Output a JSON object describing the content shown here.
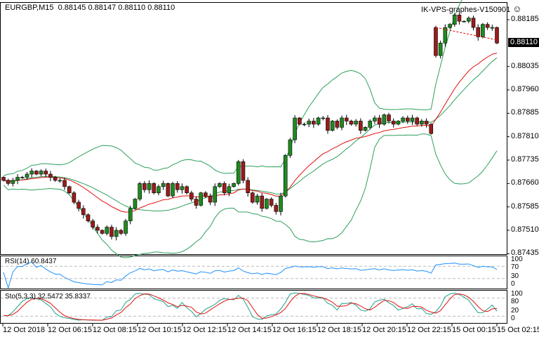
{
  "header": {
    "symbol_info": "EURGBP,M15",
    "ohlc": "0.88145 0.88147 0.88110 0.88110",
    "expert": "IK-VPS-graphes-V150901",
    "smiley": "☺"
  },
  "price_axis": {
    "labels": [
      "0.88185",
      "0.88035",
      "0.87960",
      "0.87885",
      "0.87810",
      "0.87735",
      "0.87660",
      "0.87585",
      "0.87510",
      "0.87435"
    ],
    "values": [
      0.88185,
      0.88035,
      0.8796,
      0.87885,
      0.8781,
      0.87735,
      0.8766,
      0.87585,
      0.8751,
      0.87435
    ],
    "current": "0.88110",
    "current_value": 0.8811
  },
  "rsi": {
    "label": "RSI(14) 60.8437",
    "axis": [
      "100",
      "70",
      "30",
      "0"
    ]
  },
  "sto": {
    "label": "Sto(5,3,3) 32.5472 35.8337",
    "axis": [
      "100",
      "80",
      "20",
      "0"
    ]
  },
  "time_axis": [
    "12 Oct 2018",
    "12 Oct 06:15",
    "12 Oct 08:15",
    "12 Oct 10:15",
    "12 Oct 12:15",
    "12 Oct 14:15",
    "12 Oct 16:15",
    "12 Oct 18:15",
    "12 Oct 20:15",
    "12 Oct 22:15",
    "15 Oct 00:15",
    "15 Oct 02:15"
  ],
  "colors": {
    "bull": "#1f8a1f",
    "bear": "#9b1b1b",
    "bands": "#2ca05a",
    "ma": "#e01010",
    "rsi": "#1e90ff",
    "sto_main": "#20a090",
    "sto_signal": "#e01010"
  },
  "chart_data": {
    "type": "candlestick",
    "closes": [
      0.8767,
      0.8766,
      0.8767,
      0.8768,
      0.8768,
      0.8769,
      0.877,
      0.8769,
      0.877,
      0.8769,
      0.8768,
      0.8767,
      0.8767,
      0.8765,
      0.8763,
      0.876,
      0.8758,
      0.8756,
      0.8754,
      0.8752,
      0.8751,
      0.875,
      0.8752,
      0.8749,
      0.8751,
      0.875,
      0.8754,
      0.8758,
      0.8761,
      0.8766,
      0.8764,
      0.8766,
      0.8763,
      0.8765,
      0.8766,
      0.8762,
      0.8766,
      0.8764,
      0.8765,
      0.8763,
      0.8761,
      0.8759,
      0.8763,
      0.8762,
      0.876,
      0.8765,
      0.8766,
      0.8763,
      0.8765,
      0.8766,
      0.8773,
      0.8767,
      0.8763,
      0.876,
      0.8762,
      0.8758,
      0.8761,
      0.8759,
      0.8757,
      0.8762,
      0.8775,
      0.878,
      0.8787,
      0.8785,
      0.8785,
      0.8786,
      0.8785,
      0.8787,
      0.8787,
      0.8783,
      0.8786,
      0.8784,
      0.8787,
      0.8786,
      0.8785,
      0.8786,
      0.8783,
      0.8784,
      0.8786,
      0.8787,
      0.8785,
      0.8788,
      0.8786,
      0.8785,
      0.8786,
      0.8787,
      0.8786,
      0.8787,
      0.8785,
      0.8786,
      0.8785,
      0.8782,
      0.8807,
      0.8811,
      0.8816,
      0.8817,
      0.882,
      0.8818,
      0.8818,
      0.8819,
      0.8816,
      0.8813,
      0.8817,
      0.8816,
      0.8816,
      0.8811
    ],
    "gap_open_index": 92,
    "gap_open": 0.8816
  }
}
